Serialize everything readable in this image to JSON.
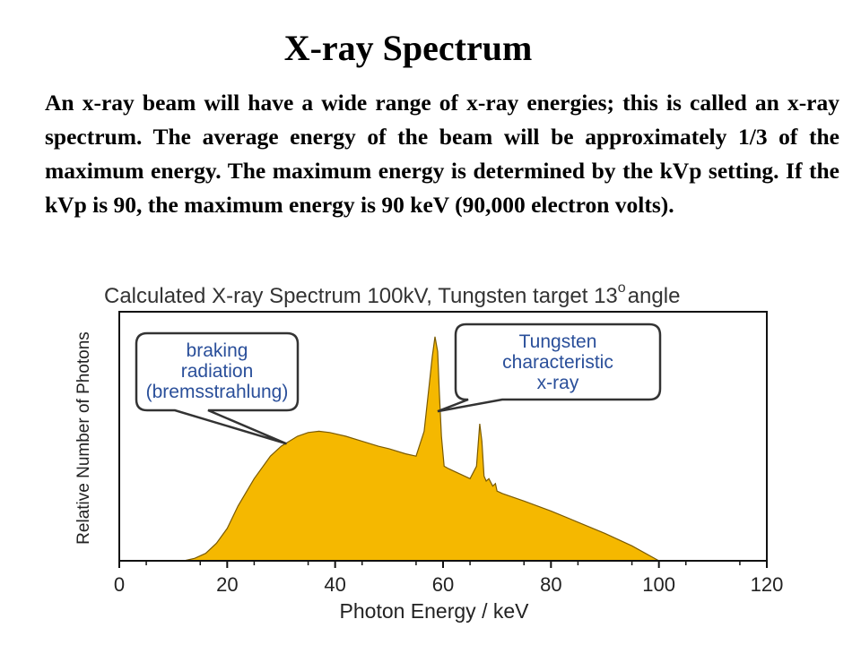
{
  "slide": {
    "title": "X-ray Spectrum",
    "paragraph": "An x-ray beam will have a wide range of x-ray energies; this is called an x-ray spectrum. The average energy of the beam will be approximately 1/3 of the maximum energy. The maximum energy is determined by the kVp setting. If the kVp is 90, the maximum energy is 90 keV (90,000 electron volts)."
  },
  "chart_data": {
    "type": "area",
    "title": "Calculated X-ray Spectrum  100kV, Tungsten target 13",
    "title_superscript": "o",
    "title_suffix": "angle",
    "xlabel": "Photon Energy / keV",
    "ylabel": "Relative Number of Photons",
    "xlim": [
      0,
      120
    ],
    "ylim": [
      0,
      1.0
    ],
    "xticks": [
      0,
      20,
      40,
      60,
      80,
      100,
      120
    ],
    "grid": false,
    "fill_color": "#f5b800",
    "series": [
      {
        "name": "spectrum",
        "x": [
          12,
          14,
          16,
          18,
          20,
          22,
          25,
          28,
          30,
          33,
          35,
          37,
          39,
          42,
          45,
          48,
          50,
          53,
          55,
          56.5,
          57.5,
          58,
          58.5,
          59,
          59.3,
          59.7,
          60.2,
          61,
          63,
          65,
          66.2,
          66.8,
          67.2,
          67.6,
          68,
          68.5,
          69.2,
          69.7,
          70,
          71,
          75,
          80,
          85,
          90,
          95,
          100
        ],
        "y": [
          0.0,
          0.01,
          0.03,
          0.07,
          0.13,
          0.22,
          0.33,
          0.42,
          0.46,
          0.5,
          0.515,
          0.52,
          0.515,
          0.5,
          0.48,
          0.46,
          0.45,
          0.43,
          0.42,
          0.52,
          0.72,
          0.82,
          0.9,
          0.84,
          0.68,
          0.5,
          0.38,
          0.37,
          0.35,
          0.33,
          0.38,
          0.55,
          0.48,
          0.34,
          0.32,
          0.33,
          0.3,
          0.31,
          0.28,
          0.27,
          0.24,
          0.2,
          0.155,
          0.11,
          0.06,
          0.0
        ]
      }
    ],
    "annotations": [
      {
        "lines": [
          "braking",
          "radiation",
          "(bremsstrahlung)"
        ],
        "target": {
          "x": 31,
          "y": 0.47
        }
      },
      {
        "lines": [
          "Tungsten",
          "characteristic",
          "x-ray"
        ],
        "target": {
          "x": 59,
          "y": 0.6
        }
      }
    ]
  }
}
